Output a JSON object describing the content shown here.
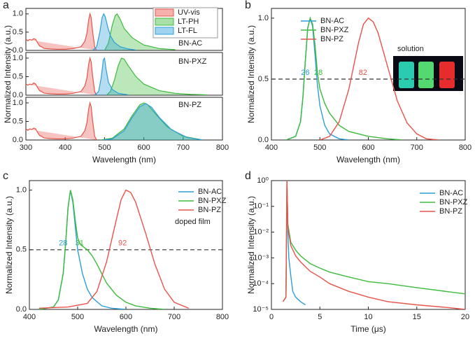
{
  "chart_data": [
    {
      "type": "area",
      "panel_label": "a",
      "annotation": "BN-AC",
      "y_label": "Normalized Intensity (a.u.)",
      "xlim": [
        300,
        800
      ],
      "ylim": [
        0,
        1.15
      ],
      "yticks": [
        {
          "value": 0,
          "label": "0.0"
        },
        0.5,
        {
          "value": 1,
          "label": "1.0"
        }
      ],
      "series": [
        {
          "name": "UV-vis",
          "color": "#e8534a",
          "x": [
            300,
            305,
            310,
            315,
            320,
            325,
            330,
            335,
            340,
            345,
            350,
            360,
            380,
            400,
            420,
            440,
            450,
            455,
            460,
            463,
            466,
            470,
            475,
            480
          ],
          "values": [
            0.3,
            0.26,
            0.3,
            0.28,
            0.32,
            0.3,
            0.2,
            0.12,
            0.1,
            0.06,
            0.05,
            0.04,
            0.03,
            0.03,
            0.05,
            0.1,
            0.25,
            0.45,
            0.85,
            1.0,
            0.9,
            0.5,
            0.1,
            0.0
          ]
        },
        {
          "name": "LT-PH",
          "color": "#3dbb3d",
          "x": [
            500,
            510,
            520,
            527,
            532,
            540,
            550,
            570,
            600,
            640,
            680
          ],
          "values": [
            0,
            0.2,
            0.7,
            0.95,
            1.0,
            0.85,
            0.6,
            0.35,
            0.15,
            0.05,
            0.02
          ]
        },
        {
          "name": "LT-FL",
          "color": "#2c9fd9",
          "x": [
            470,
            480,
            488,
            494,
            498,
            502,
            508,
            515,
            525,
            540,
            560,
            580
          ],
          "values": [
            0,
            0.1,
            0.5,
            0.9,
            1.0,
            0.92,
            0.65,
            0.4,
            0.22,
            0.1,
            0.04,
            0.01
          ]
        }
      ]
    },
    {
      "type": "area",
      "annotation": "BN-PXZ",
      "xlim": [
        300,
        800
      ],
      "ylim": [
        0,
        1.15
      ],
      "yticks": [
        {
          "value": 0,
          "label": "0.0"
        },
        0.5,
        {
          "value": 1,
          "label": "1.0"
        }
      ],
      "series": [
        {
          "color": "#e8534a",
          "x": [
            300,
            305,
            310,
            315,
            320,
            325,
            330,
            335,
            340,
            345,
            350,
            360,
            380,
            400,
            420,
            440,
            450,
            455,
            460,
            463,
            466,
            470,
            475,
            480
          ],
          "values": [
            0.3,
            0.27,
            0.3,
            0.28,
            0.33,
            0.3,
            0.2,
            0.12,
            0.1,
            0.06,
            0.05,
            0.04,
            0.03,
            0.03,
            0.05,
            0.1,
            0.25,
            0.45,
            0.85,
            1.0,
            0.9,
            0.5,
            0.1,
            0.0
          ]
        },
        {
          "color": "#3dbb3d",
          "x": [
            505,
            515,
            525,
            535,
            543,
            550,
            560,
            580,
            600,
            640,
            680,
            720,
            760
          ],
          "values": [
            0,
            0.1,
            0.4,
            0.8,
            1.0,
            0.97,
            0.8,
            0.5,
            0.3,
            0.12,
            0.05,
            0.02,
            0.01
          ]
        },
        {
          "color": "#2c9fd9",
          "x": [
            475,
            485,
            492,
            497,
            500,
            504,
            510,
            520,
            535,
            560
          ],
          "values": [
            0,
            0.1,
            0.5,
            0.95,
            1.0,
            0.7,
            0.35,
            0.15,
            0.05,
            0.01
          ]
        }
      ]
    },
    {
      "type": "area",
      "annotation": "BN-PZ",
      "x_label": "Wavelength (nm)",
      "xlim": [
        300,
        800
      ],
      "ylim": [
        0,
        1.15
      ],
      "xticks": [
        300,
        400,
        500,
        600,
        700,
        800
      ],
      "yticks": [
        {
          "value": 0,
          "label": "0.0"
        },
        0.5,
        {
          "value": 1,
          "label": "1.0"
        }
      ],
      "series": [
        {
          "color": "#e8534a",
          "x": [
            300,
            305,
            310,
            315,
            320,
            325,
            330,
            335,
            340,
            345,
            350,
            360,
            380,
            400,
            420,
            440,
            450,
            455,
            460,
            463,
            466,
            470,
            475,
            480
          ],
          "values": [
            0.3,
            0.26,
            0.3,
            0.28,
            0.32,
            0.3,
            0.2,
            0.12,
            0.1,
            0.06,
            0.05,
            0.04,
            0.03,
            0.03,
            0.05,
            0.1,
            0.25,
            0.45,
            0.85,
            1.0,
            0.9,
            0.5,
            0.1,
            0.0
          ]
        },
        {
          "color": "#3dbb3d",
          "x": [
            490,
            520,
            550,
            570,
            590,
            600,
            610,
            630,
            660,
            700,
            750
          ],
          "values": [
            0,
            0.05,
            0.3,
            0.65,
            0.95,
            1.0,
            0.95,
            0.7,
            0.35,
            0.1,
            0
          ]
        },
        {
          "color": "#2c9fd9",
          "x": [
            495,
            520,
            550,
            570,
            590,
            605,
            620,
            640,
            670,
            710,
            750
          ],
          "values": [
            0,
            0.03,
            0.25,
            0.6,
            0.9,
            0.98,
            0.88,
            0.6,
            0.28,
            0.07,
            0
          ]
        }
      ]
    },
    {
      "type": "line",
      "panel_label": "b",
      "x_label": "Wavelength (nm)",
      "y_label": "Normalized Intensity (a.u.)",
      "xlim": [
        400,
        800
      ],
      "ylim": [
        0,
        1.08
      ],
      "xticks": [
        400,
        500,
        600,
        700,
        800
      ],
      "yticks": [
        {
          "value": 0,
          "label": "0.0"
        },
        0.5,
        {
          "value": 1,
          "label": "1.0"
        }
      ],
      "reference_line": 0.5,
      "note": "solution",
      "annotations": [
        {
          "text": "26",
          "color": "#2c9fd9"
        },
        {
          "text": "28",
          "color": "#3dbb3d"
        },
        {
          "text": "82",
          "color": "#e8534a"
        }
      ],
      "series": [
        {
          "name": "BN-AC",
          "color": "#2c9fd9",
          "x": [
            430,
            450,
            460,
            465,
            470,
            475,
            480,
            485,
            490,
            495,
            500,
            510,
            520,
            540,
            560
          ],
          "values": [
            0,
            0.03,
            0.15,
            0.35,
            0.65,
            0.92,
            1.0,
            0.93,
            0.7,
            0.45,
            0.28,
            0.12,
            0.05,
            0.01,
            0
          ]
        },
        {
          "name": "BN-PXZ",
          "color": "#3dbb3d",
          "x": [
            430,
            450,
            460,
            465,
            470,
            475,
            480,
            485,
            490,
            495,
            500,
            510,
            520,
            540,
            560,
            600,
            640,
            670
          ],
          "values": [
            0,
            0.03,
            0.15,
            0.35,
            0.65,
            0.92,
            1.0,
            0.95,
            0.78,
            0.55,
            0.42,
            0.3,
            0.22,
            0.12,
            0.07,
            0.03,
            0.01,
            0
          ]
        },
        {
          "name": "BN-PZ",
          "color": "#e8534a",
          "x": [
            500,
            520,
            540,
            560,
            580,
            590,
            600,
            610,
            620,
            640,
            660,
            680,
            700,
            720,
            745
          ],
          "values": [
            0,
            0.03,
            0.15,
            0.42,
            0.8,
            0.95,
            1.0,
            0.97,
            0.88,
            0.6,
            0.32,
            0.14,
            0.05,
            0.01,
            0
          ]
        }
      ]
    },
    {
      "type": "line",
      "panel_label": "c",
      "x_label": "Wavelength (nm)",
      "y_label": "Normalized Intensity (a.u.)",
      "xlim": [
        400,
        800
      ],
      "ylim": [
        0,
        1.08
      ],
      "xticks": [
        400,
        500,
        600,
        700,
        800
      ],
      "yticks": [
        {
          "value": 0,
          "label": "0.0"
        },
        0.5,
        {
          "value": 1,
          "label": "1.0"
        }
      ],
      "reference_line": 0.5,
      "note": "doped film",
      "annotations": [
        {
          "text": "28",
          "color": "#2c9fd9"
        },
        {
          "text": "31",
          "color": "#3dbb3d"
        },
        {
          "text": "92",
          "color": "#e8534a"
        }
      ],
      "series": [
        {
          "name": "BN-AC",
          "color": "#2c9fd9",
          "x": [
            420,
            450,
            460,
            470,
            475,
            480,
            485,
            490,
            495,
            500,
            510,
            520,
            530,
            550,
            570,
            600
          ],
          "values": [
            0,
            0.02,
            0.08,
            0.3,
            0.55,
            0.85,
            1.0,
            0.9,
            0.7,
            0.5,
            0.3,
            0.17,
            0.1,
            0.03,
            0.01,
            0
          ]
        },
        {
          "name": "BN-PXZ",
          "color": "#3dbb3d",
          "x": [
            420,
            450,
            460,
            470,
            475,
            480,
            485,
            490,
            495,
            500,
            505,
            510,
            520,
            530,
            540,
            550,
            560,
            580,
            600,
            620,
            650,
            680
          ],
          "values": [
            0,
            0.02,
            0.08,
            0.3,
            0.55,
            0.85,
            1.0,
            0.92,
            0.75,
            0.6,
            0.55,
            0.53,
            0.5,
            0.45,
            0.38,
            0.3,
            0.22,
            0.12,
            0.06,
            0.03,
            0.01,
            0
          ]
        },
        {
          "name": "BN-PZ",
          "color": "#e8534a",
          "x": [
            420,
            480,
            520,
            540,
            560,
            580,
            590,
            600,
            610,
            620,
            640,
            660,
            680,
            700,
            730
          ],
          "values": [
            0.01,
            0.02,
            0.05,
            0.15,
            0.4,
            0.75,
            0.92,
            1.0,
            0.98,
            0.9,
            0.65,
            0.38,
            0.17,
            0.06,
            0.01
          ]
        }
      ]
    },
    {
      "type": "line",
      "panel_label": "d",
      "x_label": "Time (μs)",
      "y_label": "Normalized Intensity (a.u.)",
      "log_y": true,
      "xlim": [
        0,
        20
      ],
      "ylim": [
        1e-05,
        1
      ],
      "xticks": [
        0,
        5,
        10,
        15,
        20
      ],
      "yticks": [
        {
          "value": 1,
          "label": "10⁰"
        },
        {
          "value": 0.1,
          "label": "10⁻¹"
        },
        {
          "value": 0.01,
          "label": "10⁻²"
        },
        {
          "value": 0.001,
          "label": "10⁻³"
        },
        {
          "value": 0.0001,
          "label": "10⁻⁴"
        },
        {
          "value": 1e-05,
          "label": "10⁻⁵"
        }
      ],
      "series": [
        {
          "name": "BN-AC",
          "color": "#2c9fd9",
          "x": [
            1.2,
            1.5,
            1.6,
            1.7,
            1.8,
            2,
            2.2,
            2.5,
            3,
            3.5
          ],
          "values": [
            2e-05,
            3e-05,
            1,
            0.01,
            0.001,
            0.0002,
            5e-05,
            3e-05,
            2e-05,
            1.5e-05
          ]
        },
        {
          "name": "BN-PXZ",
          "color": "#3dbb3d",
          "x": [
            1.2,
            1.5,
            1.6,
            1.7,
            2,
            2.5,
            3,
            4,
            5,
            6,
            8,
            10,
            12,
            15,
            18,
            20
          ],
          "values": [
            2e-05,
            3e-05,
            1,
            0.02,
            0.004,
            0.002,
            0.0012,
            0.0006,
            0.0004,
            0.00028,
            0.00018,
            0.00012,
            0.0001,
            7e-05,
            5e-05,
            4e-05
          ]
        },
        {
          "name": "BN-PZ",
          "color": "#e8534a",
          "x": [
            1.2,
            1.5,
            1.6,
            1.7,
            2,
            2.5,
            3,
            4,
            5,
            6,
            8,
            10,
            12,
            15,
            18,
            20
          ],
          "values": [
            2e-05,
            3e-05,
            1,
            0.015,
            0.003,
            0.0012,
            0.0007,
            0.0003,
            0.00018,
            0.0001,
            5e-05,
            3e-05,
            2e-05,
            1.5e-05,
            1.2e-05,
            1e-05
          ]
        }
      ]
    }
  ]
}
